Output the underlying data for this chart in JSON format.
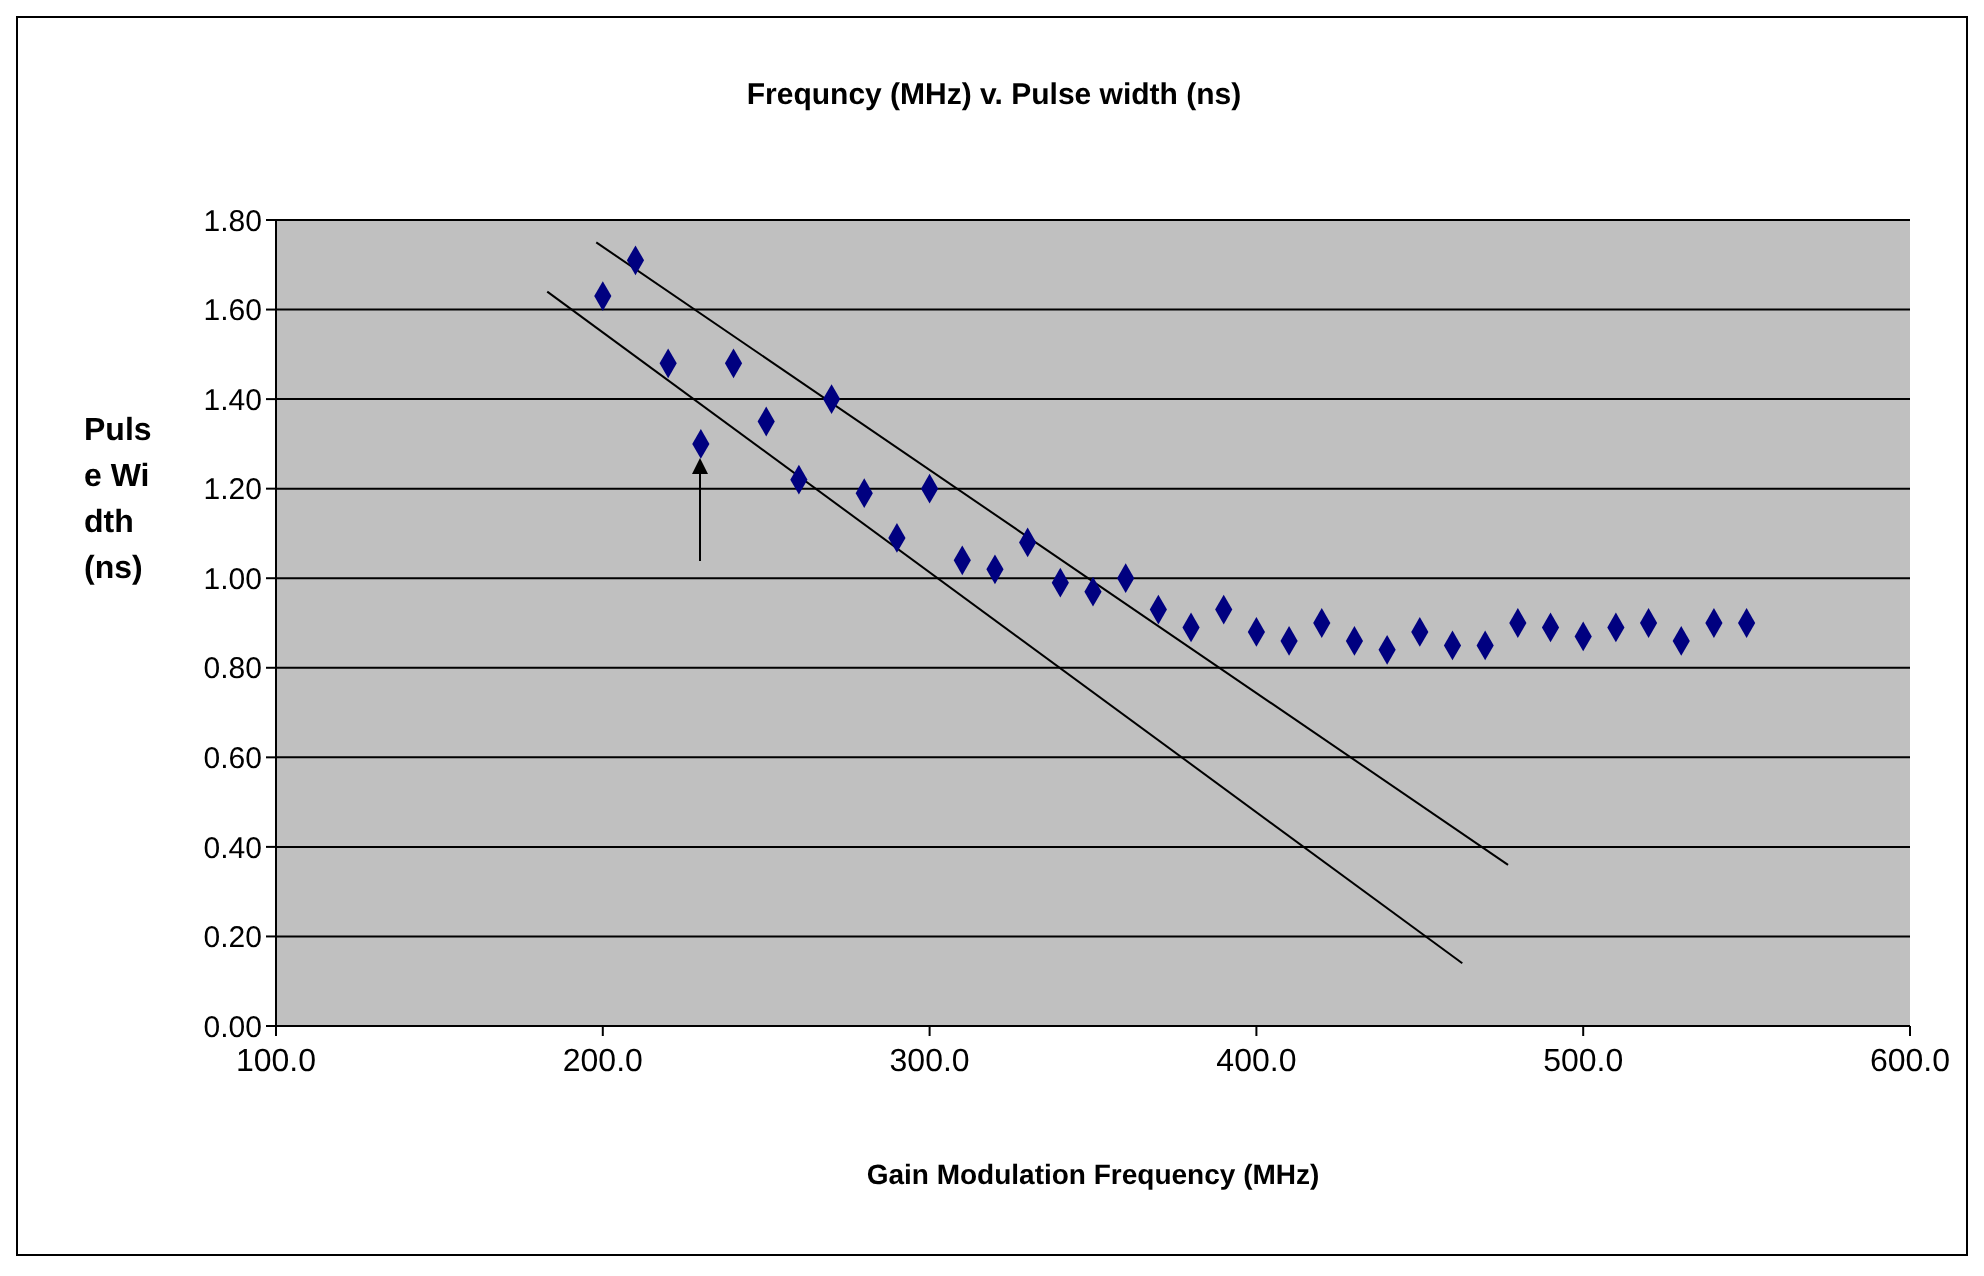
{
  "chart_data": {
    "type": "scatter",
    "title": "Frequncy (MHz) v. Pulse width (ns)",
    "xlabel": "Gain Modulation Frequency (MHz)",
    "ylabel": "Pulse Width (ns)",
    "x": [
      200,
      210,
      220,
      230,
      240,
      250,
      260,
      270,
      280,
      290,
      300,
      310,
      320,
      330,
      340,
      350,
      360,
      370,
      380,
      390,
      400,
      410,
      420,
      430,
      440,
      450,
      460,
      470,
      480,
      490,
      500,
      510,
      520,
      530,
      540,
      550
    ],
    "series": [
      {
        "color": "#000080",
        "marker": "diamond",
        "values": [
          1.63,
          1.71,
          1.48,
          1.3,
          1.48,
          1.35,
          1.22,
          1.4,
          1.19,
          1.09,
          1.2,
          1.04,
          1.02,
          1.08,
          0.99,
          0.97,
          1.0,
          0.93,
          0.89,
          0.93,
          0.88,
          0.86,
          0.9,
          0.86,
          0.84,
          0.88,
          0.85,
          0.85,
          0.9,
          0.89,
          0.87,
          0.89,
          0.9,
          0.86,
          0.9,
          0.9
        ]
      },
      {
        "type": "line",
        "marker": "none",
        "color": "#000000",
        "x": [
          183,
          463
        ],
        "values": [
          1.64,
          0.14
        ]
      },
      {
        "type": "line",
        "marker": "none",
        "color": "#000000",
        "x": [
          198,
          477
        ],
        "values": [
          1.75,
          0.36
        ]
      }
    ],
    "xlim": [
      100,
      600
    ],
    "xticks": [
      {
        "value": 100,
        "label": "100.0"
      },
      {
        "value": 200,
        "label": "200.0"
      },
      {
        "value": 300,
        "label": "300.0"
      },
      {
        "value": 400,
        "label": "400.0"
      },
      {
        "value": 500,
        "label": "500.0"
      },
      {
        "value": 600,
        "label": "600.0"
      }
    ],
    "ylim": [
      0,
      1.8
    ],
    "yticks": [
      {
        "value": 0,
        "label": "0.00"
      },
      {
        "value": 0.2,
        "label": "0.20"
      },
      {
        "value": 0.4,
        "label": "0.40"
      },
      {
        "value": 0.6,
        "label": "0.60"
      },
      {
        "value": 0.8,
        "label": "0.80"
      },
      {
        "value": 1,
        "label": "1.00"
      },
      {
        "value": 1.2,
        "label": "1.20"
      },
      {
        "value": 1.4,
        "label": "1.40"
      },
      {
        "value": 1.6,
        "label": "1.60"
      },
      {
        "value": 1.8,
        "label": "1.80"
      }
    ],
    "grid": "y"
  }
}
